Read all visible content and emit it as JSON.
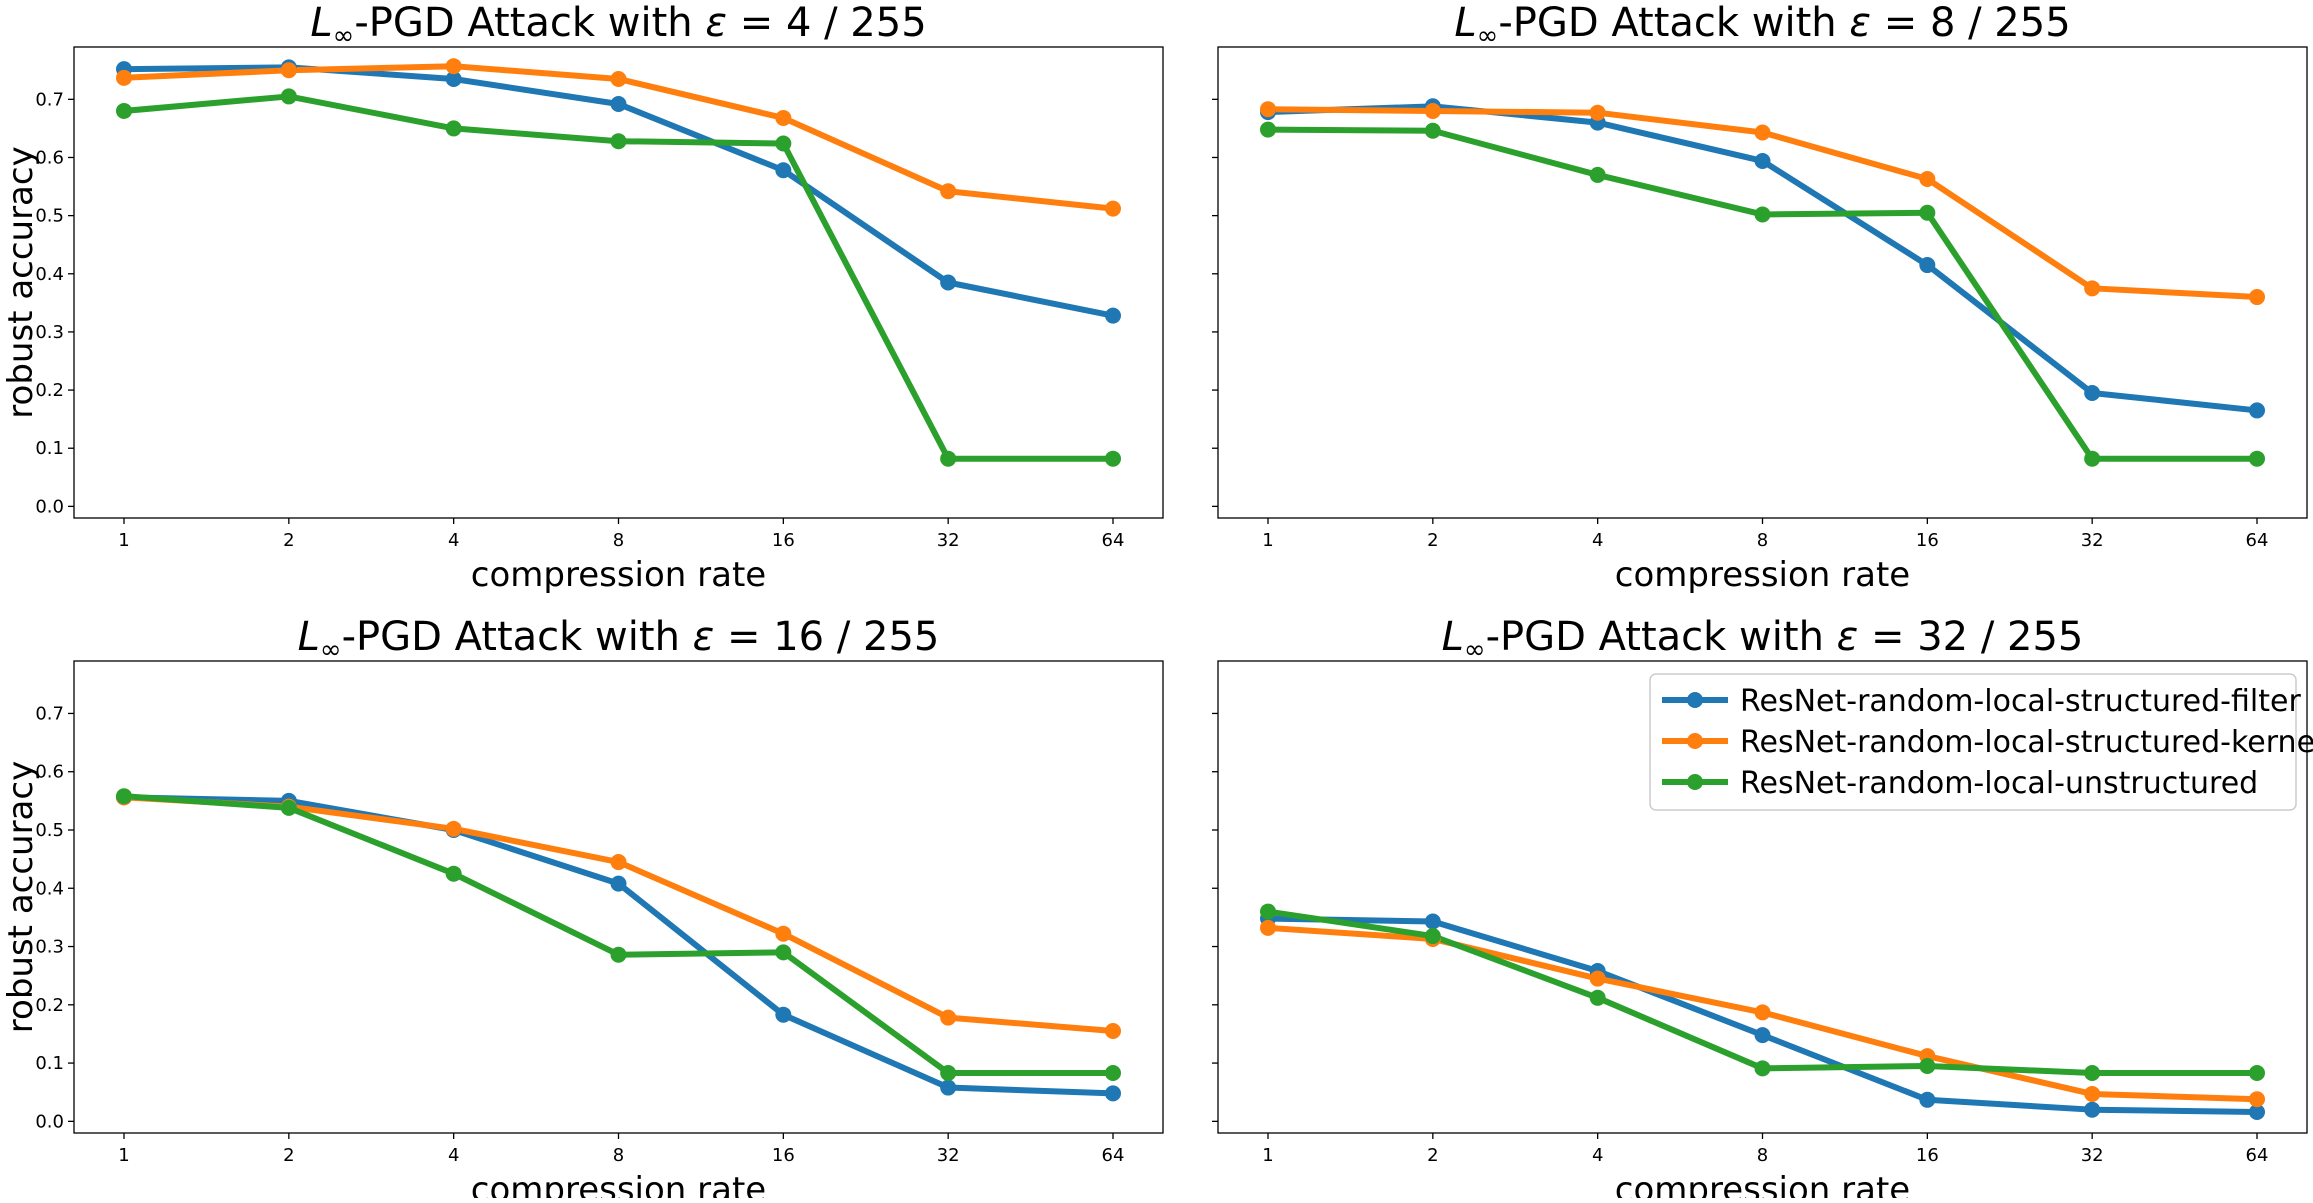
{
  "chart_data": [
    {
      "type": "line",
      "title_prefix": "L",
      "title_subscript": "∞",
      "title_main": "-PGD Attack with ",
      "title_epsilon": "ε",
      "title_value": " = 4 / 255",
      "xlabel": "compression rate",
      "ylabel": "robust accuracy",
      "categories": [
        "1",
        "2",
        "4",
        "8",
        "16",
        "32",
        "64"
      ],
      "yticks": [
        "0.0",
        "0.1",
        "0.2",
        "0.3",
        "0.4",
        "0.5",
        "0.6",
        "0.7"
      ],
      "ylim": [
        -0.02,
        0.79
      ],
      "grid": false,
      "series": [
        {
          "name": "ResNet-random-local-structured-filter",
          "color": "#1f77b4",
          "values": [
            0.752,
            0.755,
            0.735,
            0.692,
            0.578,
            0.385,
            0.328
          ]
        },
        {
          "name": "ResNet-random-local-structured-kernel",
          "color": "#ff7f0e",
          "values": [
            0.737,
            0.75,
            0.757,
            0.735,
            0.668,
            0.542,
            0.512
          ]
        },
        {
          "name": "ResNet-random-local-unstructured",
          "color": "#2ca02c",
          "values": [
            0.68,
            0.705,
            0.65,
            0.628,
            0.624,
            0.082,
            0.082
          ]
        }
      ]
    },
    {
      "type": "line",
      "title_prefix": "L",
      "title_subscript": "∞",
      "title_main": "-PGD Attack with ",
      "title_epsilon": "ε",
      "title_value": " = 8 / 255",
      "xlabel": "compression rate",
      "ylabel": "",
      "categories": [
        "1",
        "2",
        "4",
        "8",
        "16",
        "32",
        "64"
      ],
      "yticks": [],
      "ylim": [
        -0.02,
        0.79
      ],
      "grid": false,
      "series": [
        {
          "name": "ResNet-random-local-structured-filter",
          "color": "#1f77b4",
          "values": [
            0.678,
            0.688,
            0.66,
            0.594,
            0.415,
            0.195,
            0.165
          ]
        },
        {
          "name": "ResNet-random-local-structured-kernel",
          "color": "#ff7f0e",
          "values": [
            0.683,
            0.68,
            0.677,
            0.643,
            0.563,
            0.375,
            0.36
          ]
        },
        {
          "name": "ResNet-random-local-unstructured",
          "color": "#2ca02c",
          "values": [
            0.648,
            0.646,
            0.57,
            0.502,
            0.505,
            0.082,
            0.082
          ]
        }
      ]
    },
    {
      "type": "line",
      "title_prefix": "L",
      "title_subscript": "∞",
      "title_main": "-PGD Attack with ",
      "title_epsilon": "ε",
      "title_value": " = 16 / 255",
      "xlabel": "compression rate",
      "ylabel": "robust accuracy",
      "categories": [
        "1",
        "2",
        "4",
        "8",
        "16",
        "32",
        "64"
      ],
      "yticks": [
        "0.0",
        "0.1",
        "0.2",
        "0.3",
        "0.4",
        "0.5",
        "0.6",
        "0.7"
      ],
      "ylim": [
        -0.02,
        0.79
      ],
      "grid": false,
      "series": [
        {
          "name": "ResNet-random-local-structured-filter",
          "color": "#1f77b4",
          "values": [
            0.556,
            0.55,
            0.5,
            0.408,
            0.183,
            0.058,
            0.048
          ]
        },
        {
          "name": "ResNet-random-local-structured-kernel",
          "color": "#ff7f0e",
          "values": [
            0.556,
            0.54,
            0.502,
            0.445,
            0.322,
            0.178,
            0.155
          ]
        },
        {
          "name": "ResNet-random-local-unstructured",
          "color": "#2ca02c",
          "values": [
            0.558,
            0.538,
            0.425,
            0.286,
            0.29,
            0.083,
            0.083
          ]
        }
      ]
    },
    {
      "type": "line",
      "title_prefix": "L",
      "title_subscript": "∞",
      "title_main": "-PGD Attack with ",
      "title_epsilon": "ε",
      "title_value": " = 32 / 255",
      "xlabel": "compression rate",
      "ylabel": "",
      "categories": [
        "1",
        "2",
        "4",
        "8",
        "16",
        "32",
        "64"
      ],
      "yticks": [],
      "ylim": [
        -0.02,
        0.79
      ],
      "grid": false,
      "legend": "top-right",
      "series": [
        {
          "name": "ResNet-random-local-structured-filter",
          "color": "#1f77b4",
          "values": [
            0.348,
            0.343,
            0.258,
            0.148,
            0.037,
            0.02,
            0.016
          ]
        },
        {
          "name": "ResNet-random-local-structured-kernel",
          "color": "#ff7f0e",
          "values": [
            0.332,
            0.313,
            0.245,
            0.187,
            0.112,
            0.047,
            0.038
          ]
        },
        {
          "name": "ResNet-random-local-unstructured",
          "color": "#2ca02c",
          "values": [
            0.36,
            0.318,
            0.212,
            0.091,
            0.095,
            0.083,
            0.083
          ]
        }
      ]
    }
  ]
}
